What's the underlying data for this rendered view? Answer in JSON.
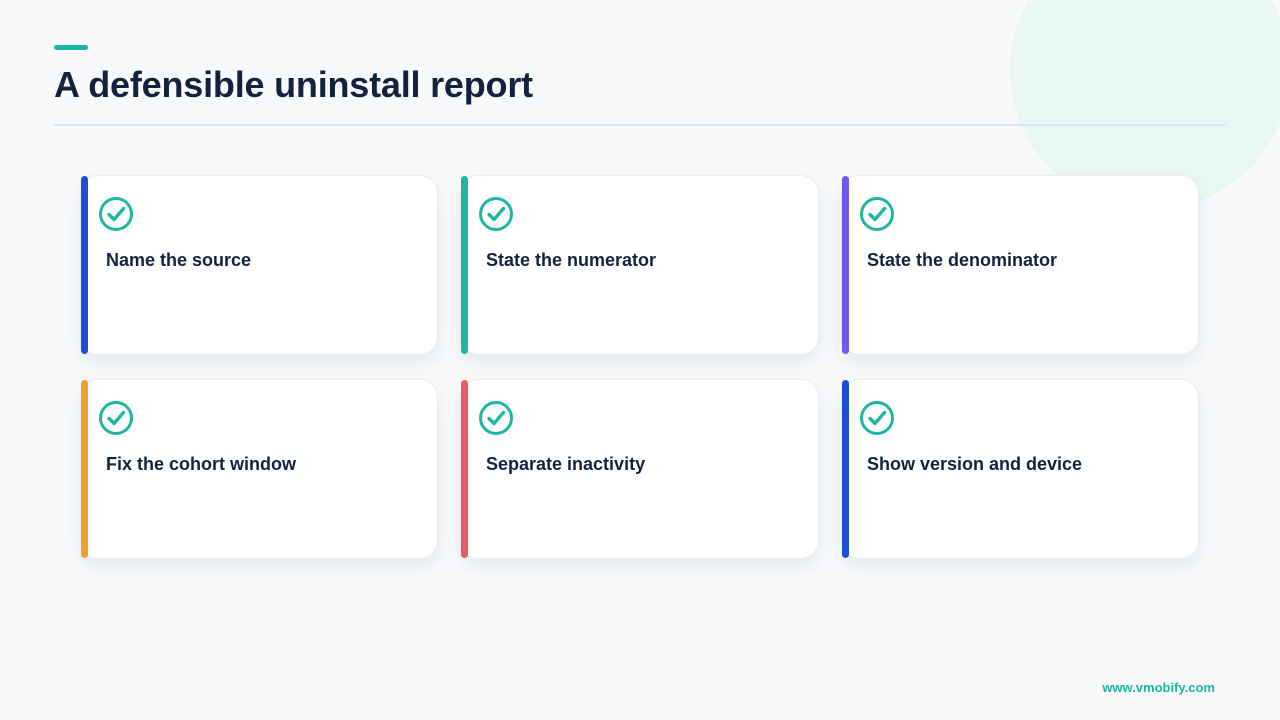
{
  "slide": {
    "title": "A defensible uninstall report",
    "footer_url": "www.vmobify.com"
  },
  "colors": {
    "accent": "#1fb5a3",
    "heading": "#15223d"
  },
  "cards": [
    {
      "label": "Name the source",
      "icon": "check-circle-icon",
      "stripe_color": "#1d4fd6"
    },
    {
      "label": "State the numerator",
      "icon": "check-circle-icon",
      "stripe_color": "#1fb5a3"
    },
    {
      "label": "State the denominator",
      "icon": "check-circle-icon",
      "stripe_color": "#7357e6"
    },
    {
      "label": "Fix the cohort window",
      "icon": "check-circle-icon",
      "stripe_color": "#f1a02a"
    },
    {
      "label": "Separate inactivity",
      "icon": "check-circle-icon",
      "stripe_color": "#e85a64"
    },
    {
      "label": "Show version and device",
      "icon": "check-circle-icon",
      "stripe_color": "#1d4fd6"
    }
  ]
}
